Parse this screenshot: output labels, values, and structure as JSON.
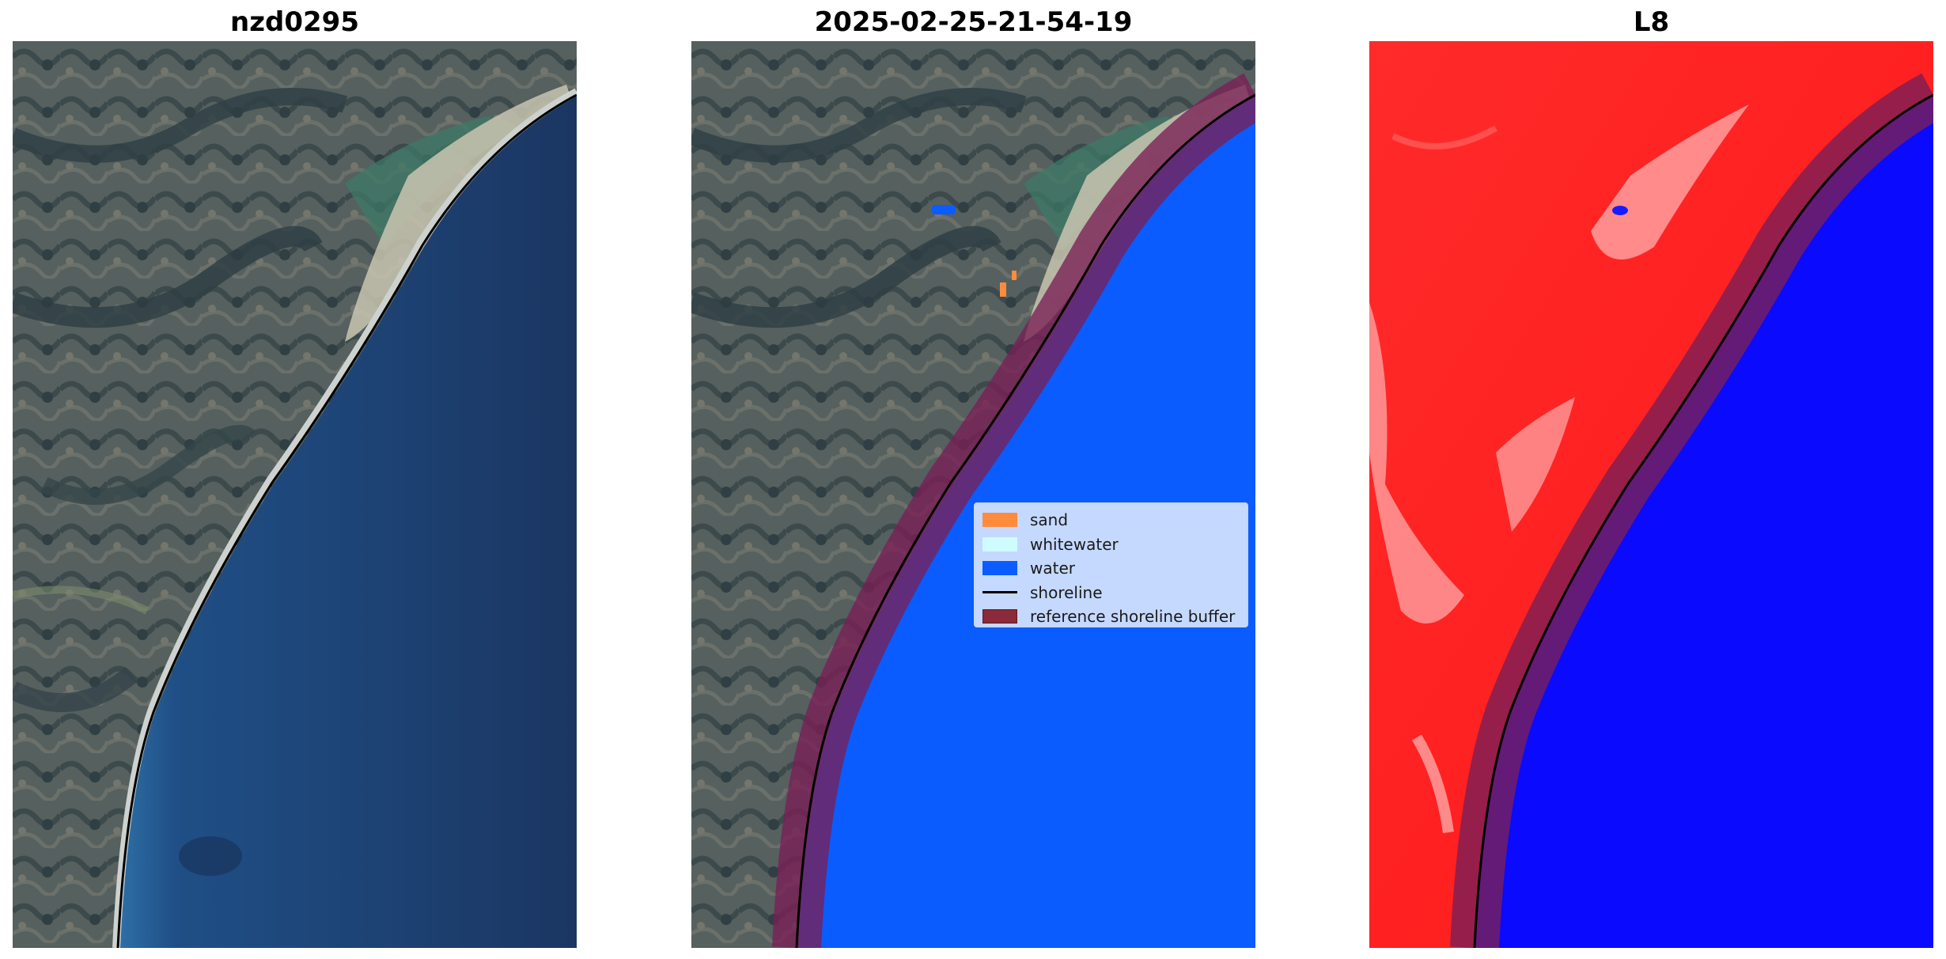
{
  "panels": [
    {
      "title": "nzd0295"
    },
    {
      "title": "2025-02-25-21-54-19"
    },
    {
      "title": "L8"
    }
  ],
  "legend": {
    "items": [
      {
        "label": "sand",
        "color": "#ff8c3c",
        "kind": "patch"
      },
      {
        "label": "whitewater",
        "color": "#cffcff",
        "kind": "patch"
      },
      {
        "label": "water",
        "color": "#0a5cff",
        "kind": "patch"
      },
      {
        "label": "shoreline",
        "color": "#000000",
        "kind": "line"
      },
      {
        "label": "reference shoreline buffer",
        "color": "#8b2a3a",
        "kind": "patch"
      }
    ]
  },
  "colors": {
    "land": "#4f5a5a",
    "ocean_dark": "#1d3a66",
    "ocean_mid": "#24558a",
    "water_class": "#0a5cff",
    "buffer": "#7a1f55",
    "index_land": "#ff2020",
    "index_water": "#0a0aff"
  }
}
